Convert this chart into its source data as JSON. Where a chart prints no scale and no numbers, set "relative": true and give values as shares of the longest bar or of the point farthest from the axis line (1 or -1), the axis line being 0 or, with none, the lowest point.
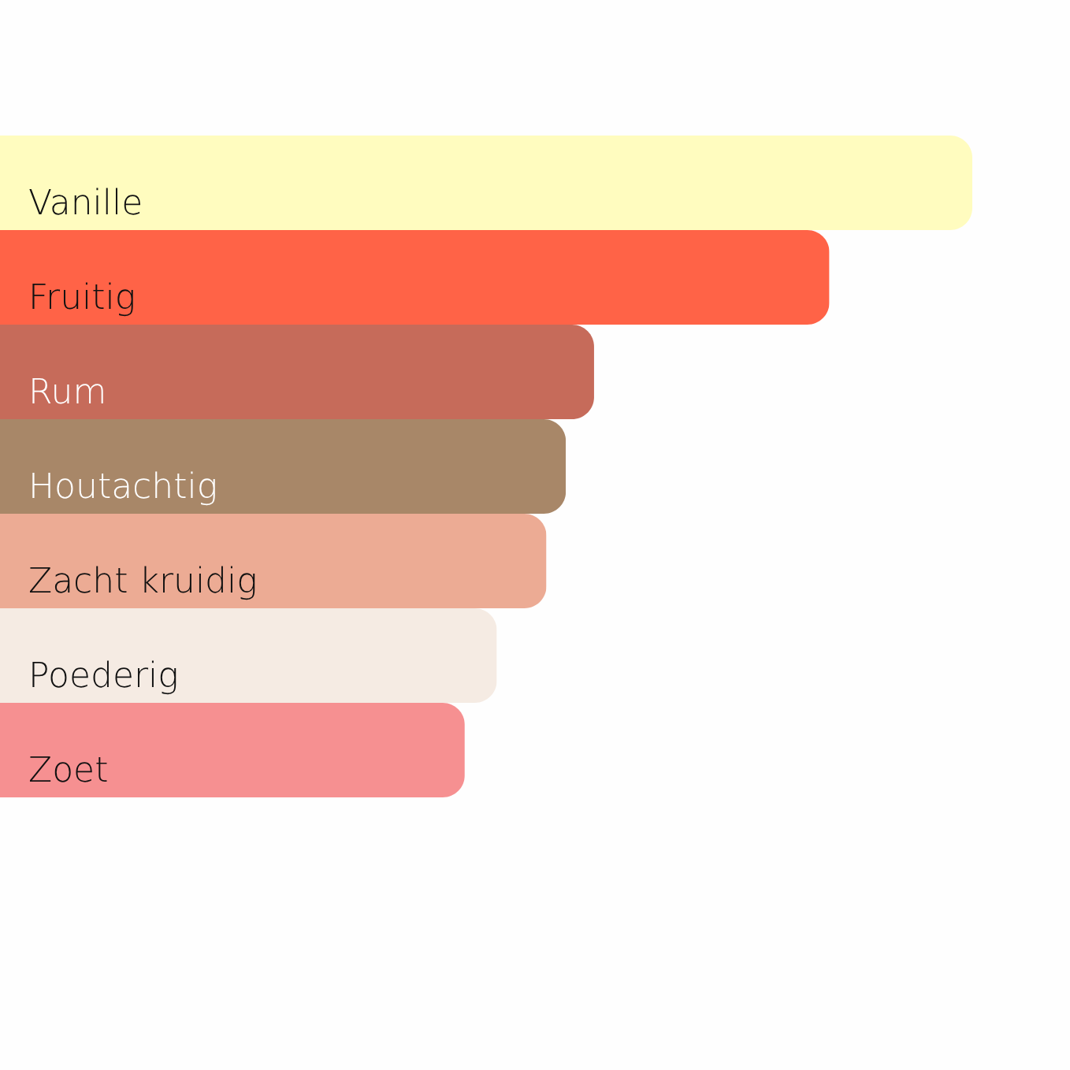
{
  "chart_data": {
    "type": "bar",
    "orientation": "horizontal",
    "relative": true,
    "categories": [
      "Vanille",
      "Fruitig",
      "Rum",
      "Houtachtig",
      "Zacht kruidig",
      "Poederig",
      "Zoet"
    ],
    "values": [
      1,
      0.853,
      0.611,
      0.582,
      0.562,
      0.511,
      0.478
    ],
    "colors": [
      "#fffcbf",
      "#ff6347",
      "#c66b5a",
      "#a88768",
      "#ecab94",
      "#f5ebe3",
      "#f69091"
    ]
  }
}
